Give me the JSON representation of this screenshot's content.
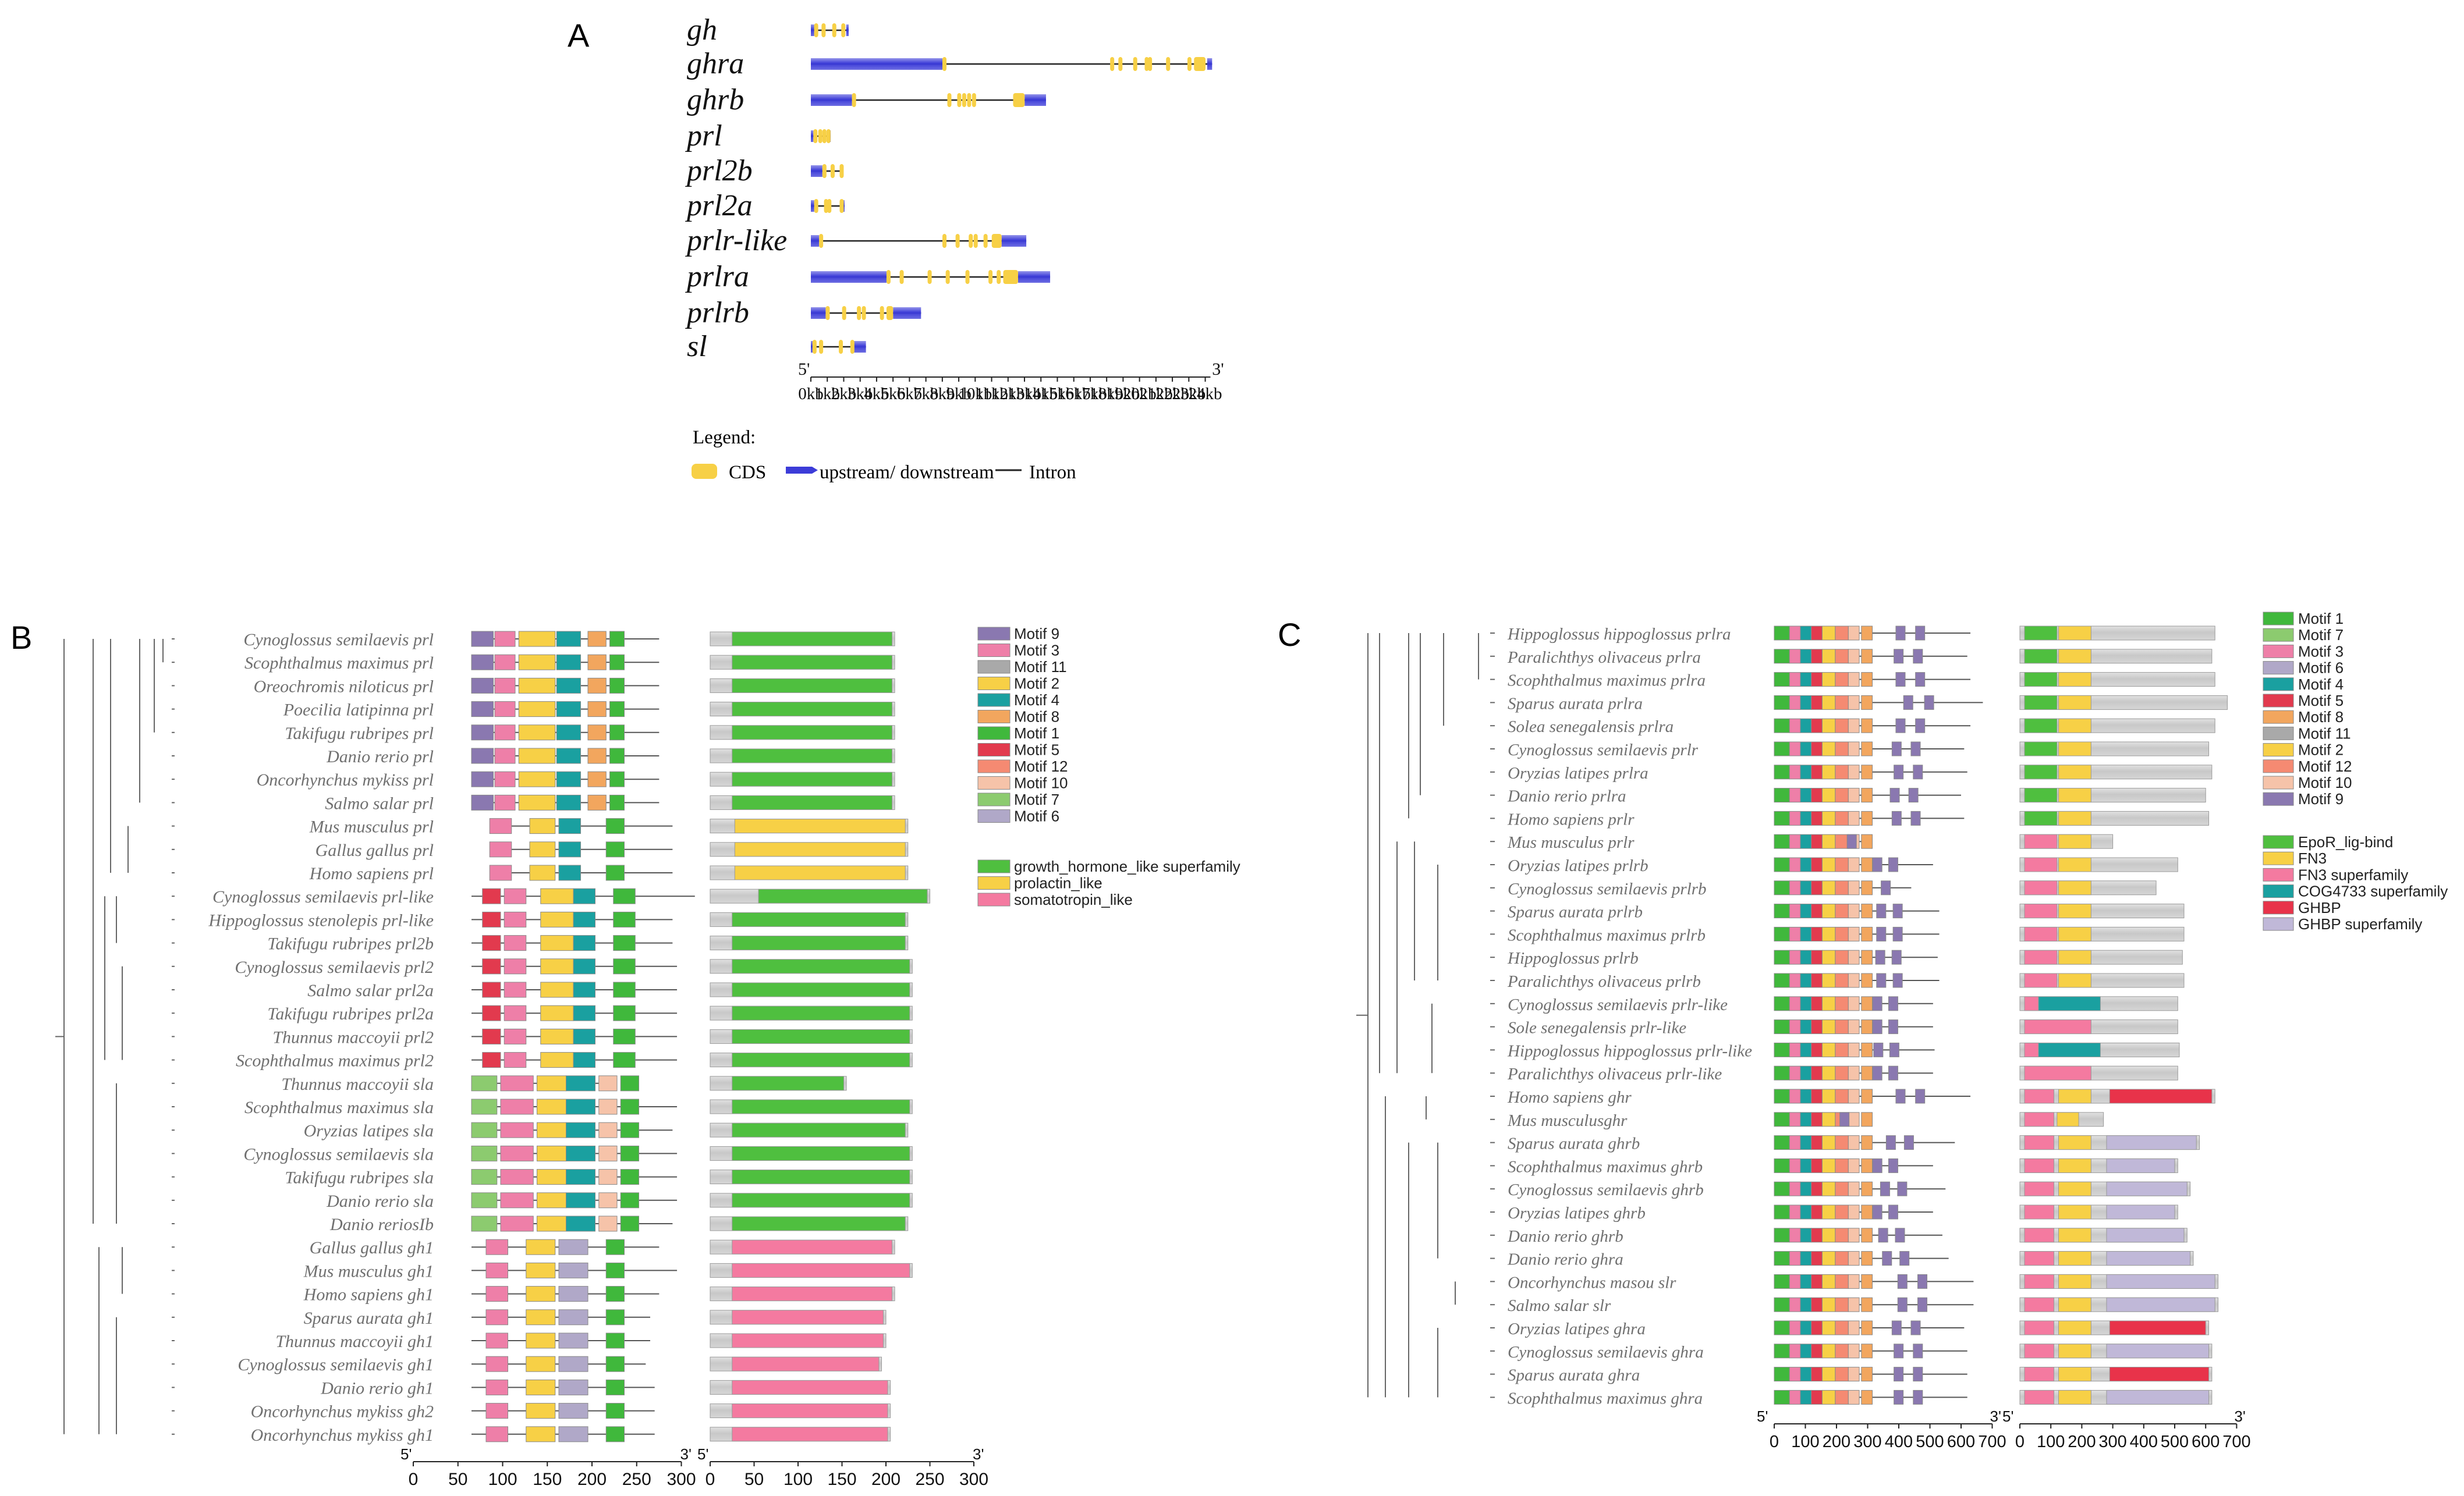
{
  "colors": {
    "cds": "#f7d046",
    "utr": "#3c3cd8",
    "intron": "#222222",
    "label": "#707070",
    "line": "#333333"
  },
  "panelA": {
    "label": "A",
    "legend_title": "Legend:",
    "legend_items": [
      "CDS",
      "upstream/ downstream",
      "Intron"
    ],
    "axis_start": "5'",
    "axis_end": "3'",
    "axis_ticks": [
      "0kb",
      "1kb",
      "2kb",
      "3kb",
      "4kb",
      "5kb",
      "6kb",
      "7kb",
      "8kb",
      "9kb",
      "10kb",
      "11kb",
      "12kb",
      "13kb",
      "14kb",
      "15kb",
      "16kb",
      "17kb",
      "18kb",
      "19kb",
      "20kb",
      "21kb",
      "22kb",
      "23kb",
      "24kb"
    ],
    "genes": [
      {
        "name": "gh",
        "len_kb": 2.3,
        "utr": [
          [
            0,
            0.2
          ],
          [
            2.15,
            2.3
          ]
        ],
        "cds": [
          [
            0.2,
            0.35
          ],
          [
            0.65,
            0.75
          ],
          [
            1.3,
            1.4
          ],
          [
            1.85,
            1.95
          ]
        ]
      },
      {
        "name": "ghra",
        "len_kb": 24.4,
        "utr": [
          [
            0,
            8.0
          ],
          [
            24.1,
            24.4
          ]
        ],
        "cds": [
          [
            8.0,
            8.15
          ],
          [
            18.2,
            18.3
          ],
          [
            18.7,
            18.8
          ],
          [
            19.6,
            19.7
          ],
          [
            20.3,
            20.4
          ],
          [
            20.5,
            20.6
          ],
          [
            21.6,
            21.7
          ],
          [
            22.9,
            23.1
          ],
          [
            23.3,
            24.0
          ]
        ]
      },
      {
        "name": "ghrb",
        "len_kb": 14.3,
        "utr": [
          [
            0,
            2.5
          ],
          [
            13.0,
            14.3
          ]
        ],
        "cds": [
          [
            2.5,
            2.6
          ],
          [
            8.3,
            8.4
          ],
          [
            8.9,
            9.0
          ],
          [
            9.2,
            9.3
          ],
          [
            9.5,
            9.6
          ],
          [
            9.8,
            9.9
          ],
          [
            12.3,
            13.0
          ]
        ]
      },
      {
        "name": "prl",
        "len_kb": 1.2,
        "utr": [
          [
            0,
            0.15
          ],
          [
            1.1,
            1.2
          ]
        ],
        "cds": [
          [
            0.15,
            0.25
          ],
          [
            0.45,
            0.55
          ],
          [
            0.7,
            0.8
          ],
          [
            0.95,
            1.05
          ]
        ]
      },
      {
        "name": "prl2b",
        "len_kb": 1.95,
        "utr": [
          [
            0,
            0.7
          ],
          [
            1.85,
            1.95
          ]
        ],
        "cds": [
          [
            0.7,
            0.95
          ],
          [
            1.2,
            1.45
          ],
          [
            1.75,
            1.85
          ]
        ]
      },
      {
        "name": "prl2a",
        "len_kb": 2.05,
        "utr": [
          [
            0,
            0.2
          ],
          [
            1.85,
            2.05
          ]
        ],
        "cds": [
          [
            0.2,
            0.35
          ],
          [
            0.8,
            0.95
          ],
          [
            1.0,
            1.1
          ],
          [
            1.75,
            1.85
          ]
        ]
      },
      {
        "name": "prlr-like",
        "len_kb": 13.1,
        "utr": [
          [
            0,
            0.5
          ],
          [
            11.6,
            13.1
          ]
        ],
        "cds": [
          [
            0.5,
            0.6
          ],
          [
            8.0,
            8.1
          ],
          [
            8.8,
            8.9
          ],
          [
            9.6,
            9.7
          ],
          [
            9.9,
            10.0
          ],
          [
            10.5,
            10.6
          ],
          [
            11.0,
            11.6
          ]
        ]
      },
      {
        "name": "prlra",
        "len_kb": 14.55,
        "utr": [
          [
            0,
            4.6
          ],
          [
            12.6,
            14.55
          ]
        ],
        "cds": [
          [
            4.6,
            4.7
          ],
          [
            5.4,
            5.5
          ],
          [
            7.1,
            7.2
          ],
          [
            8.2,
            8.3
          ],
          [
            9.4,
            9.5
          ],
          [
            10.8,
            10.9
          ],
          [
            11.3,
            11.4
          ],
          [
            11.7,
            12.6
          ]
        ]
      },
      {
        "name": "prlrb",
        "len_kb": 6.7,
        "utr": [
          [
            0,
            0.9
          ],
          [
            5.0,
            6.7
          ]
        ],
        "cds": [
          [
            0.9,
            1.05
          ],
          [
            1.9,
            2.0
          ],
          [
            2.8,
            2.9
          ],
          [
            3.1,
            3.2
          ],
          [
            4.2,
            4.3
          ],
          [
            4.6,
            5.0
          ]
        ]
      },
      {
        "name": "sl",
        "len_kb": 3.35,
        "utr": [
          [
            0,
            0.1
          ],
          [
            2.6,
            3.35
          ]
        ],
        "cds": [
          [
            0.1,
            0.2
          ],
          [
            0.5,
            0.6
          ],
          [
            1.7,
            1.85
          ],
          [
            2.4,
            2.6
          ]
        ]
      }
    ]
  },
  "panelB": {
    "label": "B",
    "axis_start": "5'",
    "axis_end": "3'",
    "axis_ticks": [
      "0",
      "50",
      "100",
      "150",
      "200",
      "250",
      "300"
    ],
    "motif_legend": [
      "Motif 9",
      "Motif 3",
      "Motif 11",
      "Motif 2",
      "Motif 4",
      "Motif 8",
      "Motif 1",
      "Motif 5",
      "Motif 12",
      "Motif 10",
      "Motif 7",
      "Motif 6"
    ],
    "motif_colors": [
      "#8a78b0",
      "#ee7fa8",
      "#a9a9a9",
      "#f7d046",
      "#1aa0a0",
      "#f2a65e",
      "#40b83c",
      "#e23a4e",
      "#f58a72",
      "#f6c3a9",
      "#8ccb6f",
      "#b0a8c8"
    ],
    "domain_legend": [
      "growth_hormone_like superfamily",
      "prolactin_like",
      "somatotropin_like"
    ],
    "domain_colors": [
      "#4fbf3f",
      "#f7d046",
      "#f47aa0"
    ],
    "taxa": [
      {
        "name": "Cynoglossus semilaevis prl",
        "len": 210,
        "dom": 0
      },
      {
        "name": "Scophthalmus maximus prl",
        "len": 210,
        "dom": 0
      },
      {
        "name": "Oreochromis niloticus prl",
        "len": 210,
        "dom": 0
      },
      {
        "name": "Poecilia latipinna prl",
        "len": 210,
        "dom": 0
      },
      {
        "name": "Takifugu rubripes prl",
        "len": 210,
        "dom": 0
      },
      {
        "name": "Danio rerio prl",
        "len": 210,
        "dom": 0
      },
      {
        "name": "Oncorhynchus mykiss prl",
        "len": 210,
        "dom": 0
      },
      {
        "name": "Salmo salar prl",
        "len": 210,
        "dom": 0
      },
      {
        "name": "Mus musculus prl",
        "len": 225,
        "dom": 1
      },
      {
        "name": "Gallus gallus prl",
        "len": 225,
        "dom": 1
      },
      {
        "name": "Homo sapiens prl",
        "len": 225,
        "dom": 1
      },
      {
        "name": "Cynoglossus semilaevis prl-like",
        "len": 250,
        "dom": 0
      },
      {
        "name": "Hippoglossus stenolepis prl-like",
        "len": 225,
        "dom": 0
      },
      {
        "name": "Takifugu rubripes prl2b",
        "len": 225,
        "dom": 0
      },
      {
        "name": "Cynoglossus semilaevis prl2",
        "len": 230,
        "dom": 0
      },
      {
        "name": "Salmo salar prl2a",
        "len": 230,
        "dom": 0
      },
      {
        "name": "Takifugu rubripes prl2a",
        "len": 230,
        "dom": 0
      },
      {
        "name": "Thunnus maccoyii prl2",
        "len": 230,
        "dom": 0
      },
      {
        "name": "Scophthalmus maximus prl2",
        "len": 230,
        "dom": 0
      },
      {
        "name": "Thunnus maccoyii sla",
        "len": 155,
        "dom": 0
      },
      {
        "name": "Scophthalmus maximus sla",
        "len": 230,
        "dom": 0
      },
      {
        "name": "Oryzias latipes sla",
        "len": 225,
        "dom": 0
      },
      {
        "name": "Cynoglossus semilaevis sla",
        "len": 230,
        "dom": 0
      },
      {
        "name": "Takifugu rubripes sla",
        "len": 230,
        "dom": 0
      },
      {
        "name": "Danio rerio sla",
        "len": 230,
        "dom": 0
      },
      {
        "name": "Danio reriosIb",
        "len": 225,
        "dom": 0
      },
      {
        "name": "Gallus gallus gh1",
        "len": 210,
        "dom": 2
      },
      {
        "name": "Mus musculus gh1",
        "len": 230,
        "dom": 2
      },
      {
        "name": "Homo sapiens gh1",
        "len": 210,
        "dom": 2
      },
      {
        "name": "Sparus aurata gh1",
        "len": 200,
        "dom": 2
      },
      {
        "name": "Thunnus maccoyii gh1",
        "len": 200,
        "dom": 2
      },
      {
        "name": "Cynoglossus semilaevis gh1",
        "len": 195,
        "dom": 2
      },
      {
        "name": "Danio rerio gh1",
        "len": 205,
        "dom": 2
      },
      {
        "name": "Oncorhynchus mykiss gh2",
        "len": 205,
        "dom": 2
      },
      {
        "name": "Oncorhynchus mykiss gh1",
        "len": 205,
        "dom": 2
      }
    ]
  },
  "panelC": {
    "label": "C",
    "axis_start": "5'",
    "axis_end": "3'",
    "axis_ticks": [
      "0",
      "100",
      "200",
      "300",
      "400",
      "500",
      "600",
      "700"
    ],
    "motif_legend": [
      "Motif 1",
      "Motif 7",
      "Motif 3",
      "Motif 6",
      "Motif 4",
      "Motif 5",
      "Motif 8",
      "Motif 11",
      "Motif 2",
      "Motif 12",
      "Motif 10",
      "Motif 9"
    ],
    "motif_colors": [
      "#40b83c",
      "#8ccb6f",
      "#ee7fa8",
      "#b0a8c8",
      "#1aa0a0",
      "#e23a4e",
      "#f2a65e",
      "#a9a9a9",
      "#f7d046",
      "#f58a72",
      "#f6c3a9",
      "#8a78b0"
    ],
    "domain_legend": [
      "EpoR_lig-bind",
      "FN3",
      "FN3 superfamily",
      "COG4733 superfamily",
      "GHBP",
      "GHBP superfamily"
    ],
    "domain_colors": [
      "#4fbf3f",
      "#f7d046",
      "#f47aa0",
      "#1aa0a0",
      "#e8334a",
      "#c0b8d8"
    ],
    "taxa": [
      {
        "name": "Hippoglossus hippoglossus prlra",
        "len": 630,
        "t": "a"
      },
      {
        "name": "Paralichthys olivaceus prlra",
        "len": 620,
        "t": "a"
      },
      {
        "name": "Scophthalmus maximus prlra",
        "len": 630,
        "t": "a"
      },
      {
        "name": "Sparus aurata prlra",
        "len": 670,
        "t": "a"
      },
      {
        "name": "Solea senegalensis prlra",
        "len": 630,
        "t": "a"
      },
      {
        "name": "Cynoglossus semilaevis prlr",
        "len": 610,
        "t": "a"
      },
      {
        "name": "Oryzias latipes prlra",
        "len": 620,
        "t": "a"
      },
      {
        "name": "Danio rerio prlra",
        "len": 600,
        "t": "a"
      },
      {
        "name": "Homo sapiens prlr",
        "len": 610,
        "t": "a"
      },
      {
        "name": "Mus musculus prlr",
        "len": 300,
        "t": "b"
      },
      {
        "name": "Oryzias latipes prlrb",
        "len": 510,
        "t": "b"
      },
      {
        "name": "Cynoglossus semilaevis prlrb",
        "len": 440,
        "t": "b"
      },
      {
        "name": "Sparus aurata prlrb",
        "len": 530,
        "t": "b"
      },
      {
        "name": "Scophthalmus maximus prlrb",
        "len": 530,
        "t": "b"
      },
      {
        "name": "Hippoglossus prlrb",
        "len": 525,
        "t": "b"
      },
      {
        "name": "Paralichthys olivaceus prlrb",
        "len": 530,
        "t": "b"
      },
      {
        "name": "Cynoglossus semilaevis prlr-like",
        "len": 510,
        "t": "c"
      },
      {
        "name": "Sole senegalensis prlr-like",
        "len": 510,
        "t": "d"
      },
      {
        "name": "Hippoglossus hippoglossus prlr-like",
        "len": 515,
        "t": "c"
      },
      {
        "name": "Paralichthys olivaceus prlr-like",
        "len": 510,
        "t": "d"
      },
      {
        "name": "Homo sapiens ghr",
        "len": 630,
        "t": "e"
      },
      {
        "name": "Mus musculusghr",
        "len": 270,
        "t": "f"
      },
      {
        "name": "Sparus aurata ghrb",
        "len": 580,
        "t": "g"
      },
      {
        "name": "Scophthalmus maximus ghrb",
        "len": 510,
        "t": "g"
      },
      {
        "name": "Cynoglossus semilaevis ghrb",
        "len": 550,
        "t": "g"
      },
      {
        "name": "Oryzias latipes ghrb",
        "len": 510,
        "t": "g"
      },
      {
        "name": "Danio rerio ghrb",
        "len": 540,
        "t": "g"
      },
      {
        "name": "Danio rerio ghra",
        "len": 560,
        "t": "g"
      },
      {
        "name": "Oncorhynchus masou slr",
        "len": 640,
        "t": "g"
      },
      {
        "name": "Salmo salar slr",
        "len": 640,
        "t": "g"
      },
      {
        "name": "Oryzias latipes ghra",
        "len": 610,
        "t": "e"
      },
      {
        "name": "Cynoglossus semilaevis ghra",
        "len": 620,
        "t": "g"
      },
      {
        "name": "Sparus aurata ghra",
        "len": 620,
        "t": "e"
      },
      {
        "name": "Scophthalmus maximus ghra",
        "len": 620,
        "t": "g"
      }
    ]
  }
}
